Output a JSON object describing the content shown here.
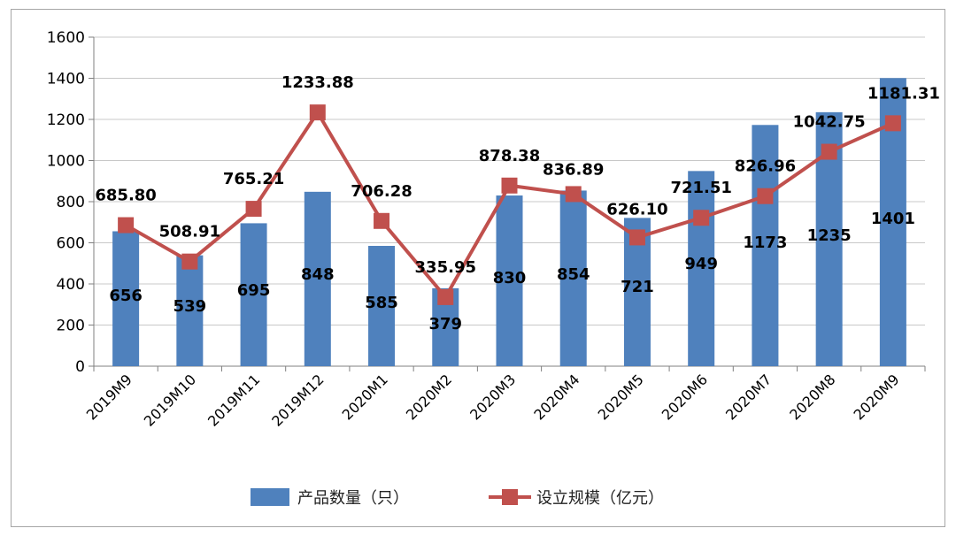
{
  "chart_data": {
    "type": "bar",
    "categories": [
      "2019M9",
      "2019M10",
      "2019M11",
      "2019M12",
      "2020M1",
      "2020M2",
      "2020M3",
      "2020M4",
      "2020M5",
      "2020M6",
      "2020M7",
      "2020M8",
      "2020M9"
    ],
    "ylim": [
      0,
      1600
    ],
    "yticks": [
      0,
      200,
      400,
      600,
      800,
      1000,
      1200,
      1400,
      1600
    ],
    "grid": true,
    "legend_position": "bottom",
    "series": [
      {
        "name": "产品数量（只）",
        "type": "bar",
        "color": "#4f81bd",
        "values": [
          656,
          539,
          695,
          848,
          585,
          379,
          830,
          854,
          721,
          949,
          1173,
          1235,
          1401
        ],
        "labels": [
          "656",
          "539",
          "695",
          "848",
          "585",
          "379",
          "830",
          "854",
          "721",
          "949",
          "1173",
          "1235",
          "1401"
        ]
      },
      {
        "name": "设立规模（亿元）",
        "type": "line",
        "color": "#c0504d",
        "values": [
          685.8,
          508.91,
          765.21,
          1233.88,
          706.28,
          335.95,
          878.38,
          836.89,
          626.1,
          721.51,
          826.96,
          1042.75,
          1181.31
        ],
        "labels": [
          "685.80",
          "508.91",
          "765.21",
          "1233.88",
          "706.28",
          "335.95",
          "878.38",
          "836.89",
          "626.10",
          "721.51",
          "826.96",
          "1042.75",
          "1181.31"
        ]
      }
    ]
  }
}
